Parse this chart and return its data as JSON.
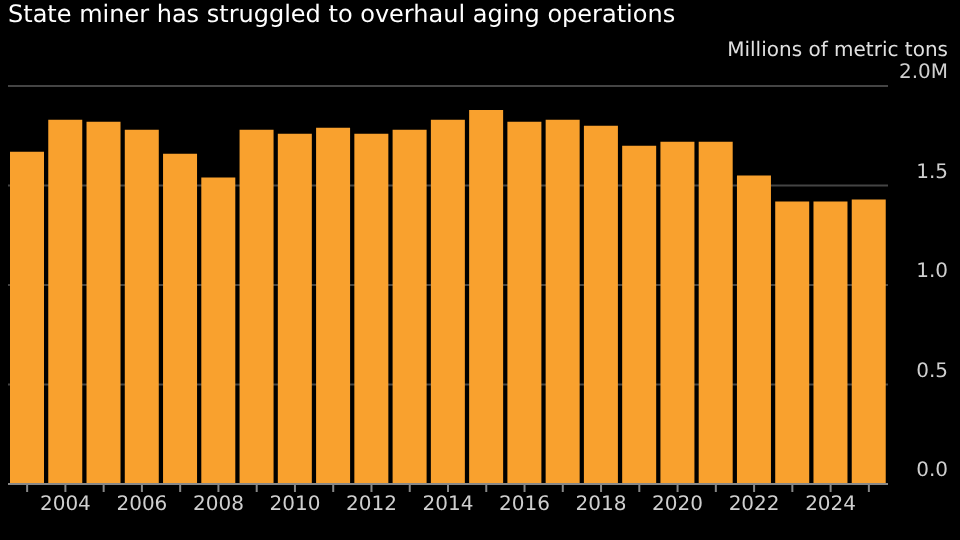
{
  "chart_data": {
    "type": "bar",
    "title": "State miner has struggled to overhaul aging operations",
    "ylabel": "Millions of metric tons",
    "categories": [
      null,
      "2004",
      null,
      "2006",
      null,
      "2008",
      null,
      "2010",
      null,
      "2012",
      null,
      "2014",
      null,
      "2016",
      null,
      "2018",
      null,
      "2020",
      null,
      "2022",
      null,
      "2024",
      null
    ],
    "values": [
      1.67,
      1.83,
      1.82,
      1.78,
      1.66,
      1.54,
      1.78,
      1.76,
      1.79,
      1.76,
      1.78,
      1.83,
      1.88,
      1.82,
      1.83,
      1.8,
      1.7,
      1.72,
      1.72,
      1.55,
      1.42,
      1.42,
      1.43
    ],
    "color": "#f9a12e",
    "ylim": [
      0,
      2
    ],
    "yticks": [
      {
        "value": 0,
        "label": "0.0"
      },
      {
        "value": 0.5,
        "label": "0.5"
      },
      {
        "value": 1,
        "label": "1.0"
      },
      {
        "value": 1.5,
        "label": "1.5"
      },
      {
        "value": 2,
        "label": "2.0M"
      }
    ],
    "grid": "y",
    "legend": false
  }
}
